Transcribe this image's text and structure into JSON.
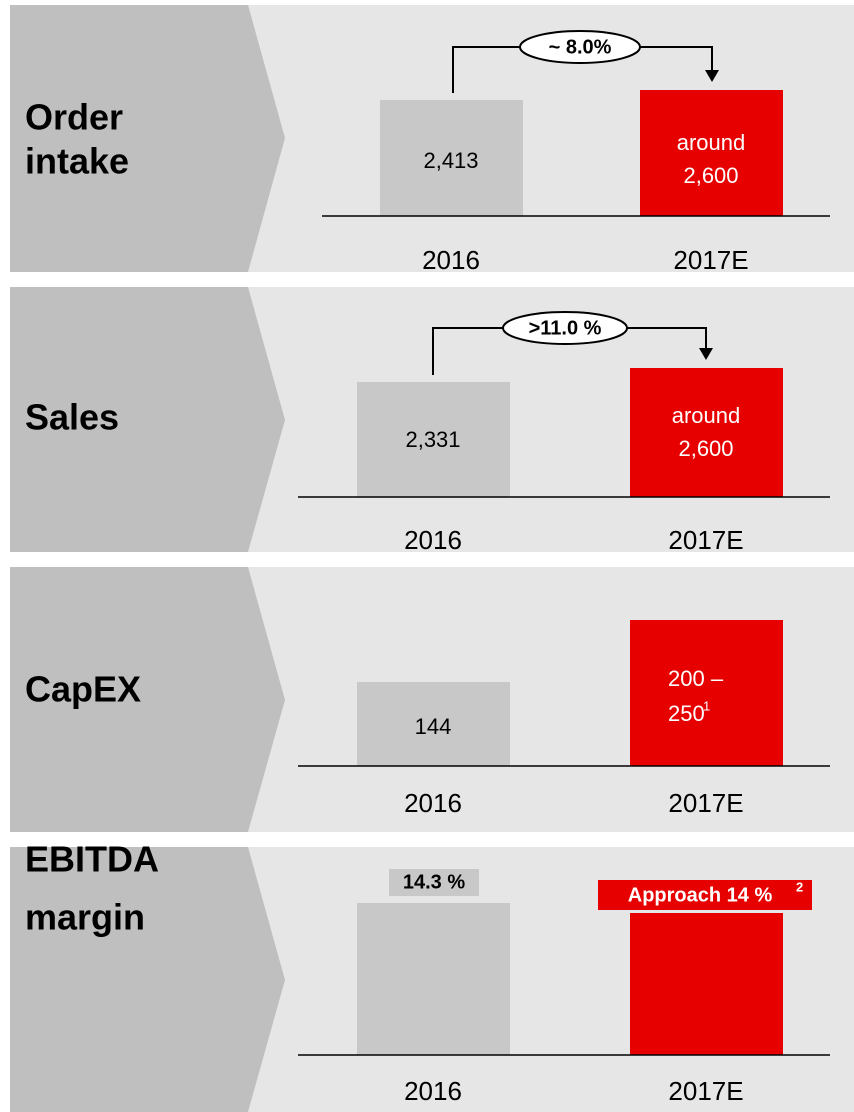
{
  "panels": [
    {
      "label": [
        "Order",
        "intake"
      ],
      "bars": [
        {
          "year": "2016",
          "value": [
            "2,413"
          ]
        },
        {
          "year": "2017E",
          "value": [
            "around",
            "2,600"
          ]
        }
      ],
      "growth": "~ 8.0%"
    },
    {
      "label": [
        "Sales"
      ],
      "bars": [
        {
          "year": "2016",
          "value": [
            "2,331"
          ]
        },
        {
          "year": "2017E",
          "value": [
            "around",
            "2,600"
          ]
        }
      ],
      "growth": ">11.0 %"
    },
    {
      "label": [
        "CapEX"
      ],
      "bars": [
        {
          "year": "2016",
          "value": [
            "144"
          ]
        },
        {
          "year": "2017E",
          "value": [
            "200 –",
            "250"
          ],
          "footnote": "1"
        }
      ]
    },
    {
      "label": [
        "EBITDA",
        "margin"
      ],
      "bars": [
        {
          "year": "2016",
          "value": [
            "14.3 %"
          ]
        },
        {
          "year": "2017E",
          "value": [
            "Approach 14 %"
          ],
          "footnote": "2"
        }
      ]
    }
  ]
}
